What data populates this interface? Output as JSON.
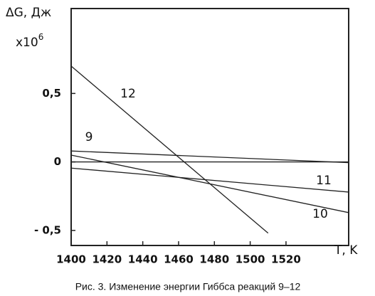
{
  "chart_data": {
    "type": "line",
    "y_label": "ΔG, Дж",
    "y_multiplier": {
      "base": "x10",
      "exponent": "6"
    },
    "x_label": "T, K",
    "caption": "Рис. 3. Изменение энергии Гиббса реакций 9–12",
    "xlim": [
      1400,
      1555
    ],
    "xticks": [
      1400,
      1420,
      1440,
      1460,
      1480,
      1500,
      1520
    ],
    "ylim": [
      -0.61,
      1.12
    ],
    "yticks": [
      {
        "value": 0.5,
        "label": "0,5"
      },
      0,
      {
        "value": -0.5,
        "label": "- 0,5"
      }
    ],
    "zero_line": true,
    "series": [
      {
        "name": "12",
        "color": "#222222",
        "x": [
          1400,
          1510
        ],
        "values": [
          0.7,
          -0.52
        ]
      },
      {
        "name": "9",
        "color": "#222222",
        "x": [
          1400,
          1555
        ],
        "values": [
          0.08,
          -0.005
        ]
      },
      {
        "name": "11",
        "color": "#222222",
        "x": [
          1400,
          1555
        ],
        "values": [
          -0.045,
          -0.22
        ]
      },
      {
        "name": "10",
        "color": "#222222",
        "x": [
          1400,
          1555
        ],
        "values": [
          0.05,
          -0.37
        ]
      }
    ]
  }
}
